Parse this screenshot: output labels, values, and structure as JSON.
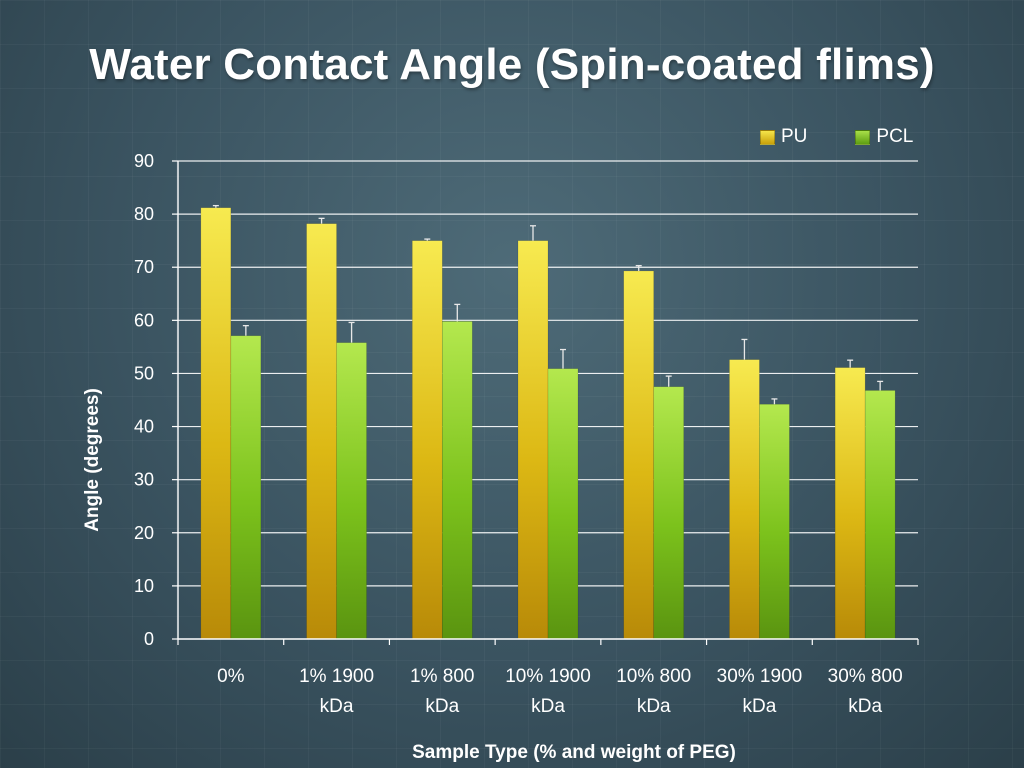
{
  "slide": {
    "title": "Water Contact Angle (Spin-coated flims)"
  },
  "chart_data": {
    "type": "bar",
    "title": "Water Contact Angle (Spin-coated flims)",
    "xlabel": "Sample Type (% and weight of PEG)",
    "ylabel": "Angle (degrees)",
    "ylim": [
      0,
      90
    ],
    "yticks": [
      0,
      10,
      20,
      30,
      40,
      50,
      60,
      70,
      80,
      90
    ],
    "grid": true,
    "legend_position": "top-right",
    "categories": [
      [
        "0%"
      ],
      [
        "1% 1900",
        "kDa"
      ],
      [
        "1% 800",
        "kDa"
      ],
      [
        "10% 1900",
        "kDa"
      ],
      [
        "10% 800",
        "kDa"
      ],
      [
        "30% 1900",
        "kDa"
      ],
      [
        "30% 800",
        "kDa"
      ]
    ],
    "series": [
      {
        "name": "PU",
        "color": "#e0c010",
        "values": [
          81.2,
          78.2,
          75.0,
          75.0,
          69.3,
          52.6,
          51.1
        ],
        "errors": [
          0.4,
          1.0,
          0.3,
          2.8,
          1.0,
          3.8,
          1.4
        ]
      },
      {
        "name": "PCL",
        "color": "#7cc41c",
        "values": [
          57.1,
          55.8,
          59.8,
          50.9,
          47.5,
          44.2,
          46.8
        ],
        "errors": [
          1.9,
          3.8,
          3.2,
          3.6,
          2.0,
          1.0,
          1.7
        ]
      }
    ]
  }
}
